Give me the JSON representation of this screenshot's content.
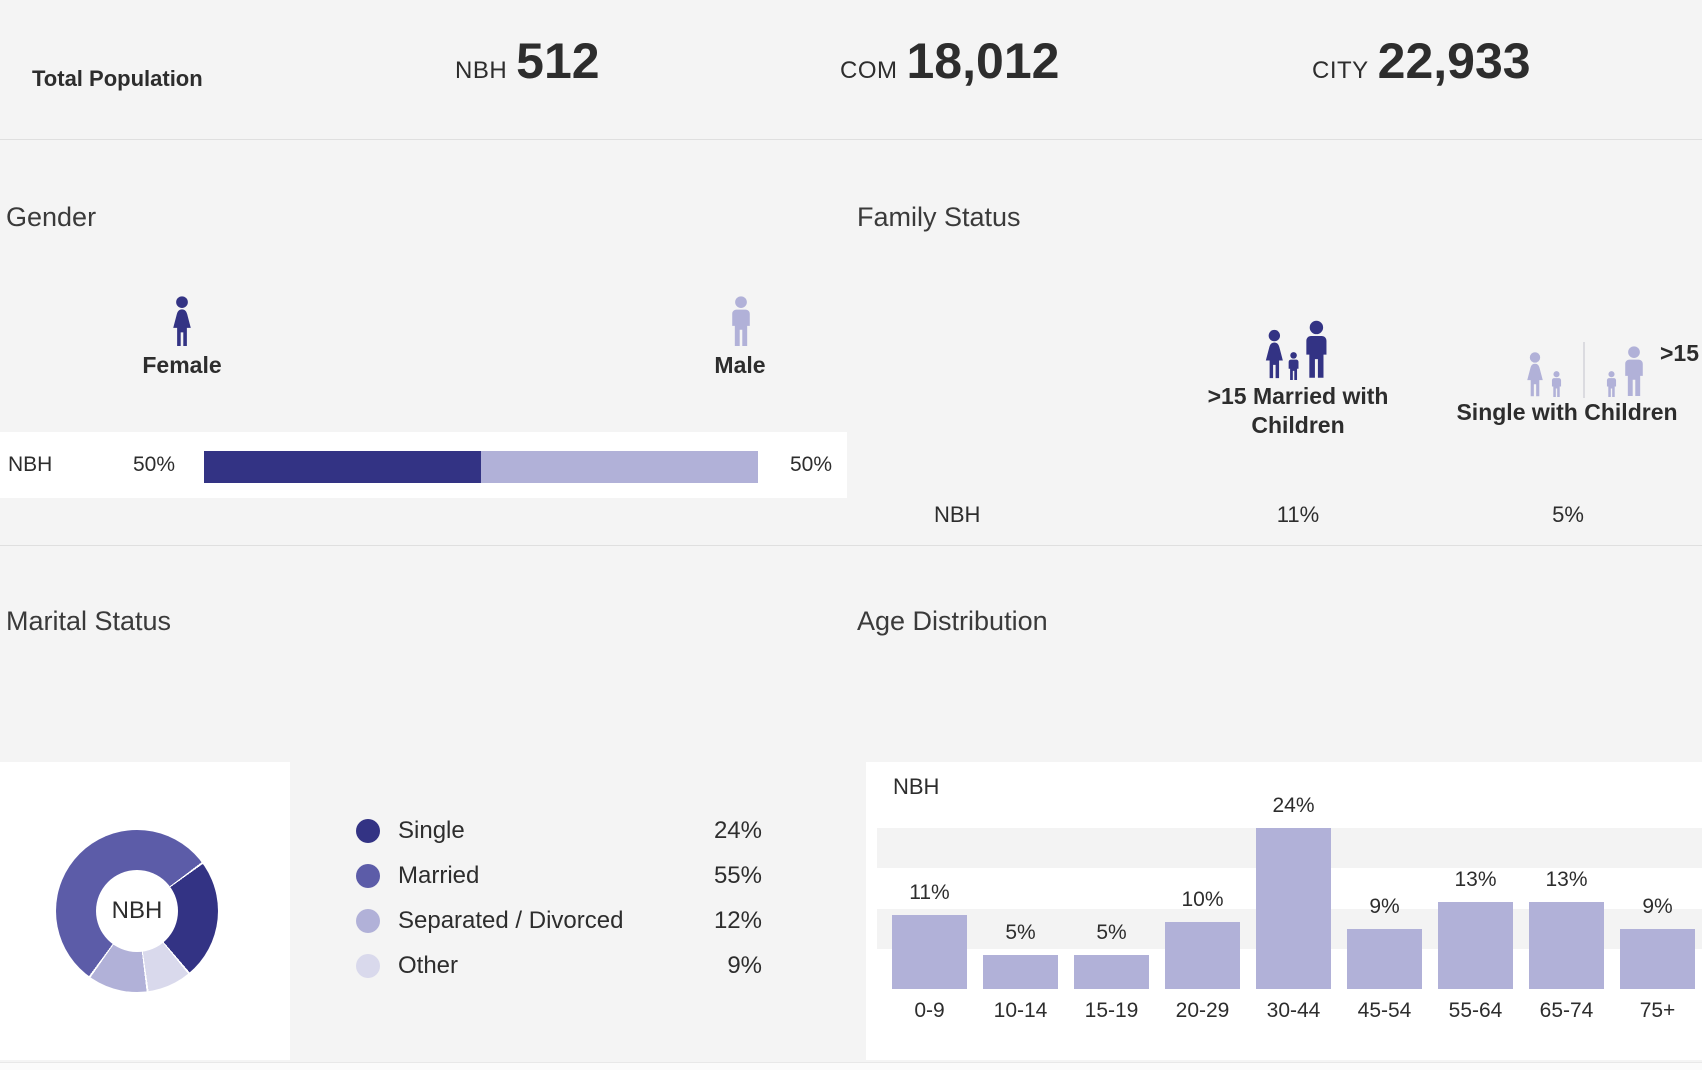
{
  "header": {
    "title": "Total Population",
    "stats": [
      {
        "label": "NBH",
        "value": "512"
      },
      {
        "label": "COM",
        "value": "18,012"
      },
      {
        "label": "CITY",
        "value": "22,933"
      }
    ]
  },
  "gender": {
    "title": "Gender",
    "female_label": "Female",
    "male_label": "Male",
    "row_label": "NBH",
    "female_pct": "50%",
    "male_pct": "50%"
  },
  "family_status": {
    "title": "Family Status",
    "row_label": "NBH",
    "married": {
      "label": ">15 Married with Children",
      "value": "11%"
    },
    "single": {
      "label": "Single with Children",
      "value": "5%",
      "annotation": ">15"
    }
  },
  "marital_status": {
    "title": "Marital Status",
    "donut_label": "NBH"
  },
  "age_distribution": {
    "title": "Age Distribution",
    "series_label": "NBH"
  },
  "colors": {
    "dark": "#333384",
    "medium": "#5C5CA8",
    "light": "#B1B1D8",
    "xlight": "#D9D9EC",
    "background": "#F4F4F4",
    "card": "#FFFFFF",
    "gridband": "#F3F3F3",
    "text": "#2D2D2D"
  },
  "chart_data": [
    {
      "type": "bar",
      "title": "Gender",
      "categories": [
        "Female",
        "Male"
      ],
      "series": [
        {
          "name": "NBH",
          "values": [
            50,
            50
          ]
        }
      ],
      "unit": "%",
      "colors": [
        "#333384",
        "#B1B1D8"
      ],
      "layout": "single horizontal stacked bar, labels both ends"
    },
    {
      "type": "pictogram",
      "title": "Family Status",
      "categories": [
        ">15 Married with Children",
        "Single with Children"
      ],
      "series": [
        {
          "name": "NBH",
          "values": [
            11,
            5
          ]
        }
      ],
      "unit": "%"
    },
    {
      "type": "pie",
      "title": "Marital Status",
      "series_label": "NBH",
      "labels": [
        "Single",
        "Married",
        "Separated / Divorced",
        "Other"
      ],
      "values": [
        24,
        55,
        12,
        9
      ],
      "colors": [
        "#333384",
        "#5C5CA8",
        "#B1B1D8",
        "#D9D9EC"
      ],
      "donut": true,
      "start_angle_deg": 53,
      "clockwise_order": [
        0,
        3,
        2,
        1
      ],
      "legend_position": "right"
    },
    {
      "type": "bar",
      "title": "Age Distribution",
      "series_label": "NBH",
      "categories": [
        "0-9",
        "10-14",
        "15-19",
        "20-29",
        "30-44",
        "45-54",
        "55-64",
        "65-74",
        "75+"
      ],
      "values": [
        11,
        5,
        5,
        10,
        24,
        9,
        13,
        13,
        9
      ],
      "unit": "%",
      "ylim": [
        0,
        26
      ],
      "gridbands": [
        [
          6,
          12
        ],
        [
          18,
          24
        ]
      ],
      "bar_color": "#B1B1D8",
      "grid": "striped horizontal bands",
      "legend_position": "none"
    }
  ]
}
